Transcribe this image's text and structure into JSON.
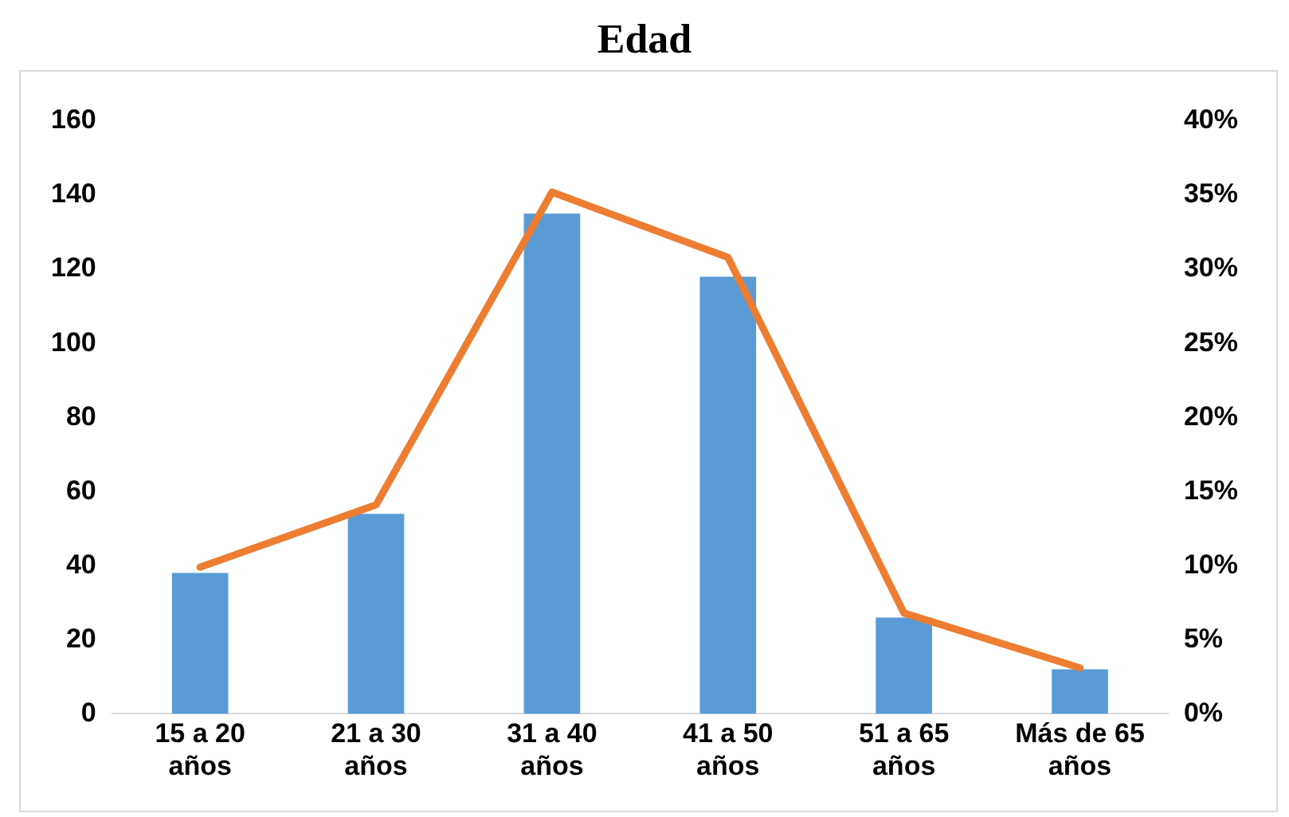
{
  "chart_data": {
    "type": "bar",
    "title": "Edad",
    "categories": [
      "15 a 20 años",
      "21 a 30 años",
      "31 a 40 años",
      "41 a 50 años",
      "51 a 65 años",
      "Más de 65 años"
    ],
    "series": [
      {
        "color": "#5b9bd5",
        "values": [
          38,
          54,
          135,
          118,
          26,
          12
        ]
      },
      {
        "type": "line",
        "axis": "y2",
        "color": "#ed7d31",
        "marker": "none",
        "values": [
          9.9,
          14.1,
          35.2,
          30.8,
          6.8,
          3.1
        ]
      }
    ],
    "ylim": [
      0,
      160
    ],
    "yticks": [
      0,
      20,
      40,
      60,
      80,
      100,
      120,
      140,
      160
    ],
    "y2lim": [
      0,
      40
    ],
    "y2ticks": [
      {
        "value": 0,
        "label": "0%"
      },
      {
        "value": 5,
        "label": "5%"
      },
      {
        "value": 10,
        "label": "10%"
      },
      {
        "value": 15,
        "label": "15%"
      },
      {
        "value": 20,
        "label": "20%"
      },
      {
        "value": 25,
        "label": "25%"
      },
      {
        "value": 30,
        "label": "30%"
      },
      {
        "value": 35,
        "label": "35%"
      },
      {
        "value": 40,
        "label": "40%"
      }
    ],
    "grid": false,
    "legend": false
  }
}
